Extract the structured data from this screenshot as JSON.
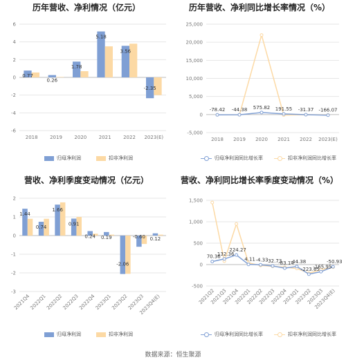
{
  "source": "数据来源：恒生聚源",
  "colors": {
    "blue": "#7f9fd4",
    "orange": "#fcd9a4",
    "grid": "#e6e6e6",
    "zero": "#bbbbbb"
  },
  "chart_data": [
    {
      "type": "bar",
      "title": "历年营收、净利情况（亿元）",
      "categories": [
        "2018",
        "2019",
        "2020",
        "2021",
        "2022",
        "2023(E)"
      ],
      "series": [
        {
          "name": "归母净利润",
          "values": [
            0.77,
            0.26,
            1.78,
            5.18,
            3.56,
            -2.35
          ]
        },
        {
          "name": "扣非净利润",
          "values": [
            0.55,
            0.05,
            0.7,
            3.5,
            3.8,
            -2.0
          ]
        }
      ],
      "data_labels": [
        "0.77",
        "0.26",
        "1.78",
        "5.18",
        "3.56",
        "-2.35"
      ],
      "ylim": [
        -6,
        6
      ],
      "yticks": [
        "-6",
        "-4",
        "-2",
        "0",
        "2",
        "4",
        "6"
      ],
      "legend": "bottom"
    },
    {
      "type": "line",
      "title": "历年营收、净利同比增长率情况（%）",
      "categories": [
        "2018",
        "2019",
        "2020",
        "2021",
        "2022",
        "2023(E)"
      ],
      "series": [
        {
          "name": "归母净利润同比增长率",
          "values": [
            -78.42,
            -44.38,
            575.82,
            191.55,
            -31.37,
            -166.07
          ]
        },
        {
          "name": "扣非净利润同比增长率",
          "values": [
            -80,
            -60,
            22000,
            -150,
            -30,
            -110
          ]
        }
      ],
      "data_labels": [
        "-78.42",
        "-44.38",
        "575.82",
        "191.55",
        "-31.37",
        "-166.07"
      ],
      "ylim": [
        -5000,
        25000
      ],
      "yticks": [
        "-5,000",
        "0",
        "5,000",
        "10,000",
        "15,000",
        "20,000",
        "25,000"
      ],
      "legend": "bottom"
    },
    {
      "type": "bar",
      "title": "营收、净利季度变动情况（亿元）",
      "categories": [
        "2021Q4",
        "2022Q1",
        "2022Q2",
        "2022Q3",
        "2022Q4",
        "2023Q1",
        "2023Q2",
        "2023Q3",
        "2023Q4(E)"
      ],
      "series": [
        {
          "name": "归母净利润",
          "values": [
            1.44,
            0.74,
            1.66,
            0.91,
            0.24,
            0.19,
            -2.06,
            -0.6,
            0.12
          ]
        },
        {
          "name": "扣非净利润",
          "values": [
            0.9,
            0.9,
            1.78,
            1.0,
            0.1,
            0.05,
            -2.05,
            -0.45,
            0.05
          ]
        }
      ],
      "data_labels": [
        "1.44",
        "0.74",
        "1.66",
        "0.91",
        "0.24",
        "0.19",
        "-2.06",
        "-0.60",
        "0.12"
      ],
      "ylim": [
        -3,
        2
      ],
      "yticks": [
        "-3",
        "-2",
        "-1",
        "0",
        "1",
        "2"
      ],
      "legend": "bottom"
    },
    {
      "type": "line",
      "title": "营收、净利同比增长率季度变动情况（%）",
      "categories": [
        "2021Q2",
        "2021Q3",
        "2021Q4",
        "2022Q1",
        "2022Q2",
        "2022Q3",
        "2022Q4",
        "2023Q1",
        "2023Q2",
        "2023Q3",
        "2023Q4(E)"
      ],
      "series": [
        {
          "name": "归母净利润同比增长率",
          "values": [
            70.36,
            132.36,
            224.27,
            4.11,
            -4.33,
            -32.73,
            -83.14,
            -44.38,
            -223.65,
            -165.95,
            -50.93
          ]
        },
        {
          "name": "扣非净利润同比增长率",
          "values": [
            1450,
            80,
            950,
            40,
            -20,
            -40,
            -60,
            -90,
            -200,
            -120,
            -60
          ]
        }
      ],
      "data_labels": [
        "70.36",
        "132.36",
        "224.27",
        "4.11",
        "-4.33",
        "-32.73",
        "-83.14",
        "-44.38",
        "-223.65",
        "-165.95",
        "-50.93"
      ],
      "ylim": [
        -500,
        1500
      ],
      "yticks": [
        "-500",
        "0",
        "500",
        "1,000",
        "1,500"
      ],
      "legend": "bottom"
    }
  ]
}
